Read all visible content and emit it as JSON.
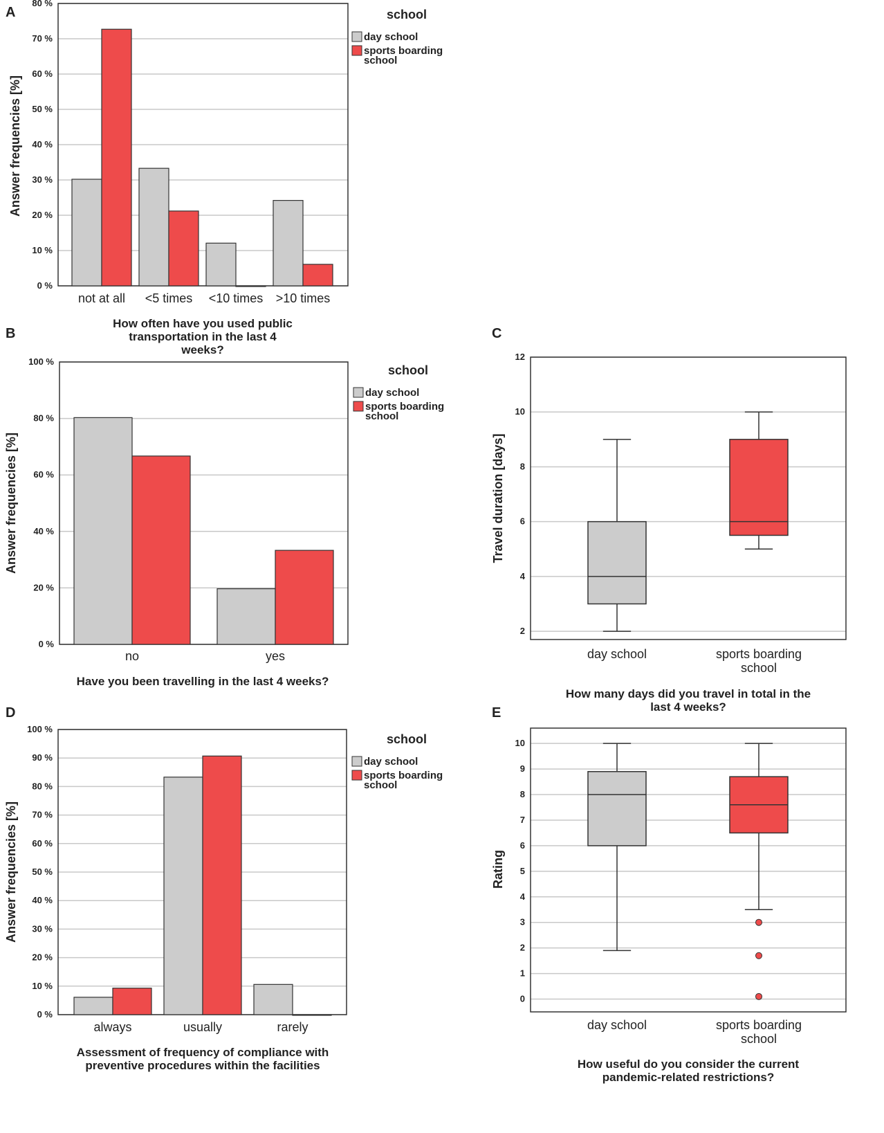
{
  "colors": {
    "day_school": "#cccccc",
    "sports_boarding_school": "#ee4b4b",
    "grid": "#c8c8c8",
    "frame": "#333333"
  },
  "legend": {
    "title": "school",
    "items": [
      "day school",
      "sports boarding school"
    ]
  },
  "chart_data": [
    {
      "panel": "A",
      "type": "bar",
      "categories": [
        "not at all",
        "<5 times",
        "<10 times",
        ">10 times"
      ],
      "series": [
        {
          "name": "day school",
          "values": [
            30.2,
            33.3,
            12.1,
            24.2
          ]
        },
        {
          "name": "sports boarding school",
          "values": [
            72.7,
            21.2,
            0,
            6.1
          ]
        }
      ],
      "xlabel": "How often have you used public transportation in the last 4 weeks?",
      "ylabel": "Answer frequencies [%]",
      "ylim": [
        0,
        80
      ],
      "yticks": [
        "0 %",
        "10 %",
        "20 %",
        "30 %",
        "40 %",
        "50 %",
        "60 %",
        "70 %",
        "80 %"
      ]
    },
    {
      "panel": "B",
      "type": "bar",
      "categories": [
        "no",
        "yes"
      ],
      "series": [
        {
          "name": "day school",
          "values": [
            80.3,
            19.7
          ]
        },
        {
          "name": "sports boarding school",
          "values": [
            66.7,
            33.3
          ]
        }
      ],
      "xlabel": "Have you been travelling in the last 4 weeks?",
      "ylabel": "Answer frequencies [%]",
      "ylim": [
        0,
        100
      ],
      "yticks": [
        "0 %",
        "20 %",
        "40 %",
        "60 %",
        "80 %",
        "100 %"
      ]
    },
    {
      "panel": "C",
      "type": "box",
      "categories": [
        "day school",
        "sports boarding school"
      ],
      "boxes": [
        {
          "name": "day school",
          "min": 2,
          "q1": 3,
          "median": 4,
          "q3": 6,
          "max": 9,
          "outliers": []
        },
        {
          "name": "sports boarding school",
          "min": 5,
          "q1": 5.5,
          "median": 6,
          "q3": 9,
          "max": 10,
          "outliers": []
        }
      ],
      "xlabel": "How many days did you travel in total in the last 4 weeks?",
      "ylabel": "Travel duration [days]",
      "ylim": [
        1.7,
        12
      ],
      "yticks": [
        "2",
        "4",
        "6",
        "8",
        "10",
        "12"
      ]
    },
    {
      "panel": "D",
      "type": "bar",
      "categories": [
        "always",
        "usually",
        "rarely"
      ],
      "series": [
        {
          "name": "day school",
          "values": [
            6.1,
            83.3,
            10.6
          ]
        },
        {
          "name": "sports boarding school",
          "values": [
            9.3,
            90.7,
            0
          ]
        }
      ],
      "xlabel": "Assessment of frequency of compliance with preventive procedures within the facilities",
      "ylabel": "Answer frequencies [%]",
      "ylim": [
        0,
        100
      ],
      "yticks": [
        "0 %",
        "10 %",
        "20 %",
        "30 %",
        "40 %",
        "50 %",
        "60 %",
        "70 %",
        "80 %",
        "90 %",
        "100 %"
      ]
    },
    {
      "panel": "E",
      "type": "box",
      "categories": [
        "day school",
        "sports boarding school"
      ],
      "boxes": [
        {
          "name": "day school",
          "min": 1.9,
          "q1": 6,
          "median": 8,
          "q3": 8.9,
          "max": 10,
          "outliers": []
        },
        {
          "name": "sports boarding school",
          "min": 3.5,
          "q1": 6.5,
          "median": 7.6,
          "q3": 8.7,
          "max": 10,
          "outliers": [
            3,
            1.7,
            0.1
          ]
        }
      ],
      "xlabel": "How useful do you consider the current pandemic-related restrictions?",
      "ylabel": "Rating",
      "ylim": [
        -0.5,
        10.6
      ],
      "yticks": [
        "0",
        "1",
        "2",
        "3",
        "4",
        "5",
        "6",
        "7",
        "8",
        "9",
        "10"
      ]
    }
  ]
}
